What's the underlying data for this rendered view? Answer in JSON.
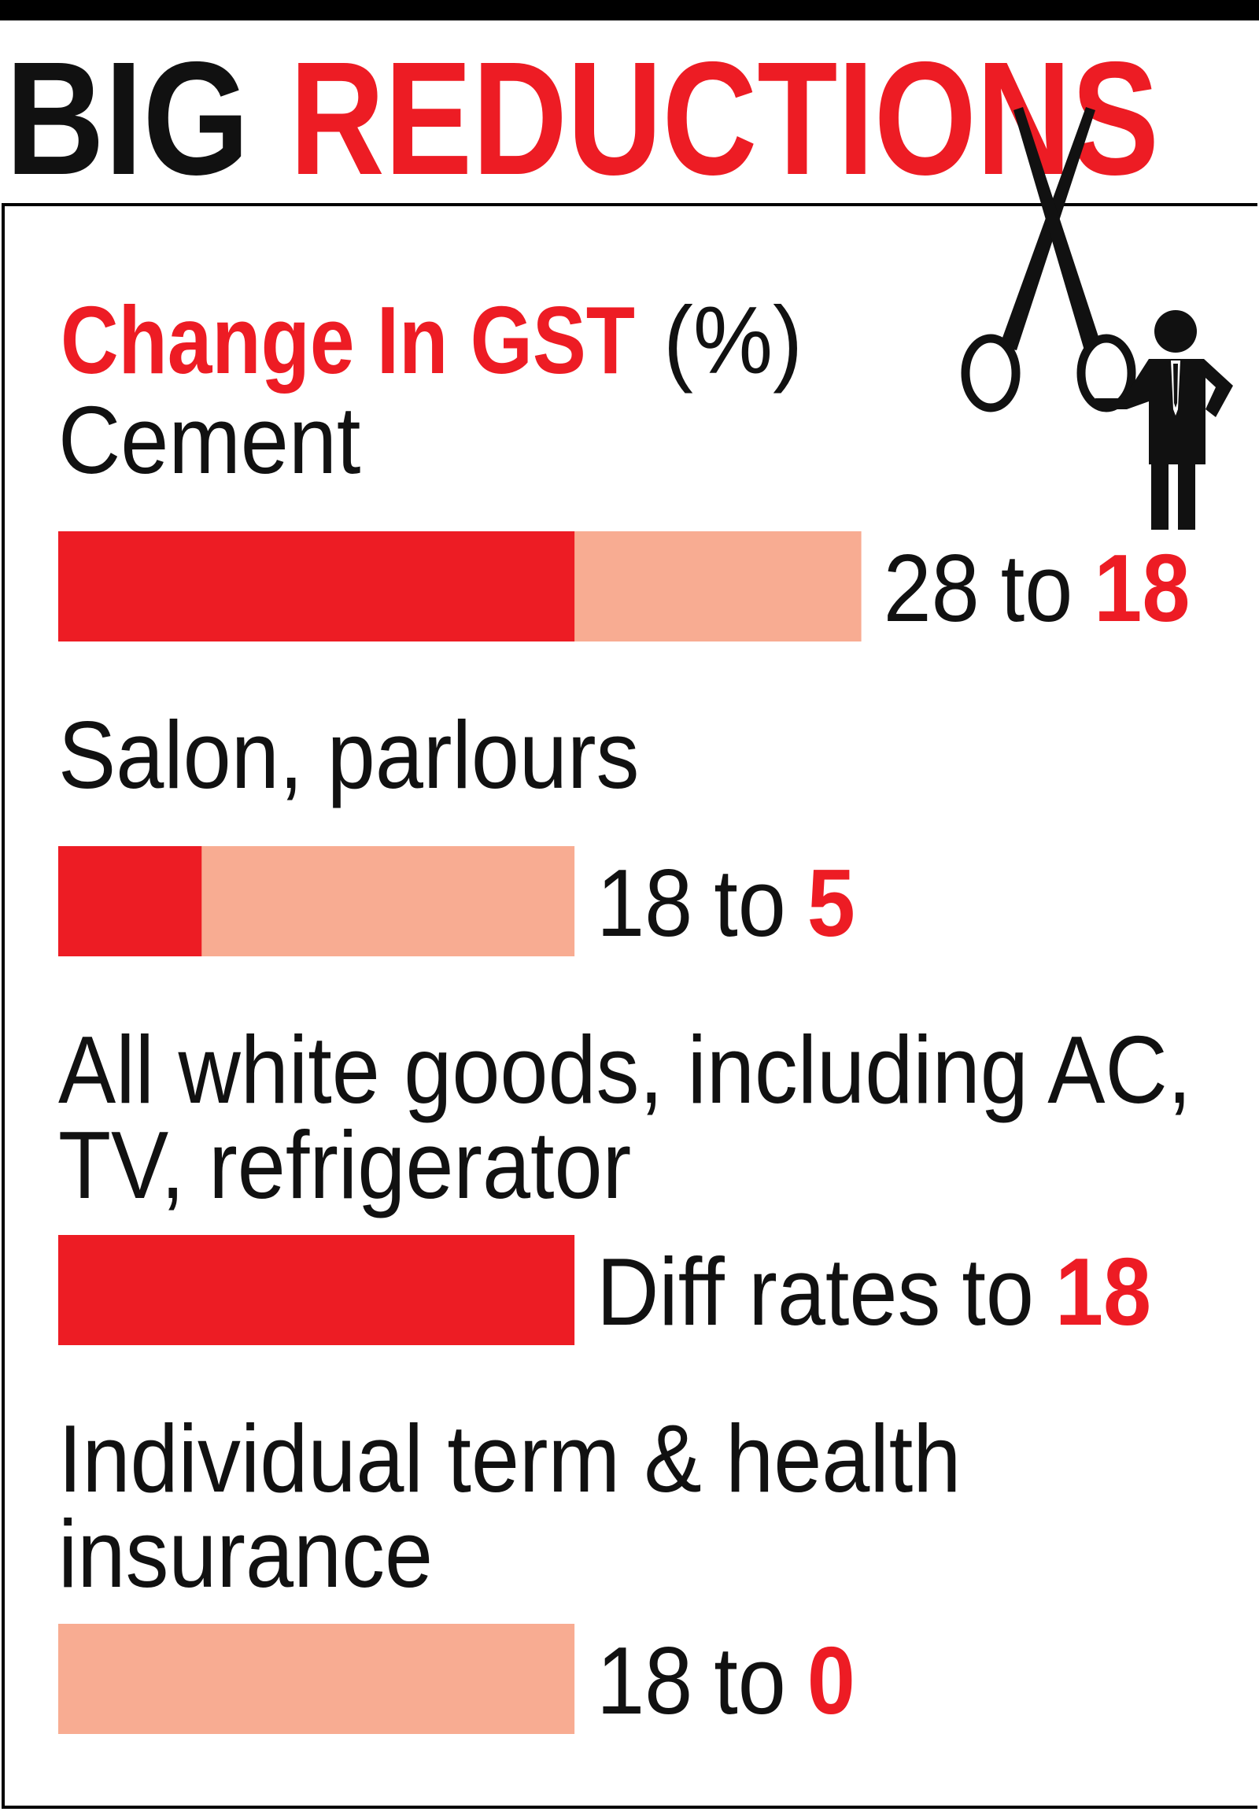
{
  "chart_data": {
    "type": "bar",
    "title": "BIG",
    "title_highlight": "REDUCTIONS",
    "subtitle": "Change In GST",
    "unit": "(%)",
    "categories": [
      "Cement",
      "Salon, parlours",
      "All white goods, including AC, TV, refrigerator",
      "Individual term & health insurance"
    ],
    "connector": "to",
    "xlim": [
      0,
      40
    ],
    "series": [
      {
        "color": "#f8ac92",
        "values": [
          28,
          18,
          null,
          18
        ],
        "value_labels": [
          "28",
          "18",
          "Diff rates",
          "18"
        ]
      },
      {
        "color": "#ed1c24",
        "values": [
          18,
          5,
          18,
          0
        ]
      }
    ]
  }
}
